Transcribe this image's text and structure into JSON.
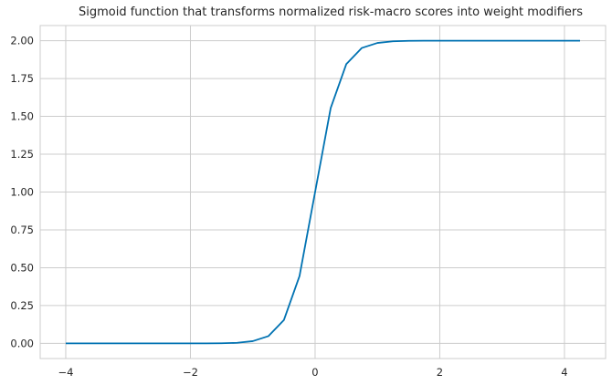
{
  "chart_data": {
    "type": "line",
    "title": "Sigmoid function that transforms normalized risk-macro scores into weight modifiers",
    "xlabel": "",
    "ylabel": "",
    "xlim": [
      -4.41,
      4.66
    ],
    "ylim": [
      -0.1,
      2.1
    ],
    "grid": true,
    "legend": "none",
    "x_ticks": [
      -4,
      -2,
      0,
      2,
      4
    ],
    "x_tick_labels": [
      "−4",
      "−2",
      "0",
      "2",
      "4"
    ],
    "y_ticks": [
      0,
      0.25,
      0.5,
      0.75,
      1.0,
      1.25,
      1.5,
      1.75,
      2.0
    ],
    "y_tick_labels": [
      "0.00",
      "0.25",
      "0.50",
      "0.75",
      "1.00",
      "1.25",
      "1.50",
      "1.75",
      "2.00"
    ],
    "line_color": "#0072b2",
    "grid_color": "#cccccc",
    "series": [
      {
        "x": [
          -4.0,
          -3.75,
          -3.5,
          -3.25,
          -3.0,
          -2.75,
          -2.5,
          -2.25,
          -2.0,
          -1.75,
          -1.5,
          -1.25,
          -1.0,
          -0.75,
          -0.5,
          -0.25,
          0.0,
          0.25,
          0.5,
          0.75,
          1.0,
          1.25,
          1.5,
          1.75,
          2.0,
          2.25,
          2.5,
          2.75,
          3.0,
          3.25,
          3.5,
          3.75,
          4.0,
          4.25
        ],
        "y": [
          0.0,
          0.0,
          0.0,
          0.0,
          0.0,
          0.0,
          0.0,
          0.0,
          0.0001,
          0.0002,
          0.001,
          0.004,
          0.015,
          0.048,
          0.155,
          0.445,
          1.0,
          1.555,
          1.845,
          1.952,
          1.985,
          1.996,
          1.999,
          2.0,
          2.0,
          2.0,
          2.0,
          2.0,
          2.0,
          2.0,
          2.0,
          2.0,
          2.0,
          2.0
        ]
      }
    ]
  }
}
